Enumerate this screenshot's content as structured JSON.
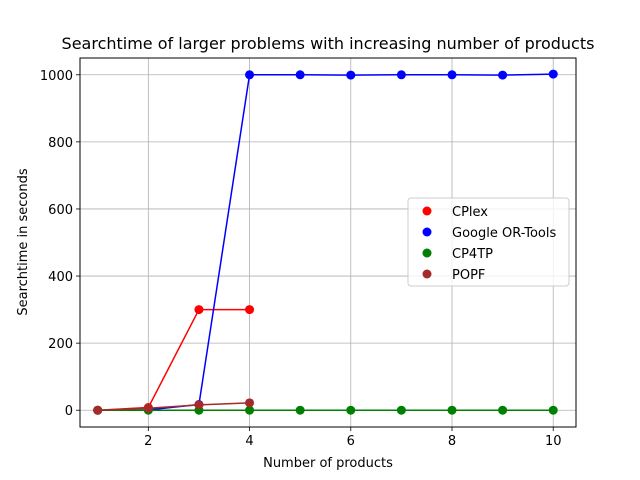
{
  "chart_data": {
    "type": "line",
    "title": "Searchtime of larger problems with increasing number of products",
    "xlabel": "Number of products",
    "ylabel": "Searchtime in seconds",
    "xlim": [
      0.65,
      10.45
    ],
    "ylim": [
      -50,
      1050
    ],
    "xticks": [
      2,
      4,
      6,
      8,
      10
    ],
    "yticks": [
      0,
      200,
      400,
      600,
      800,
      1000
    ],
    "grid": true,
    "legend_position": "center-right",
    "series": [
      {
        "name": "CPlex",
        "color": "#ff0000",
        "x": [
          1,
          2,
          3,
          4
        ],
        "y": [
          0,
          8,
          300,
          300
        ]
      },
      {
        "name": "Google OR-Tools",
        "color": "#0000ff",
        "x": [
          1,
          2,
          3,
          4,
          5,
          6,
          7,
          8,
          9,
          10
        ],
        "y": [
          0,
          1,
          17,
          1000,
          1000,
          999,
          1000,
          1000,
          999,
          1002
        ]
      },
      {
        "name": "CP4TP",
        "color": "#008000",
        "x": [
          1,
          2,
          3,
          4,
          5,
          6,
          7,
          8,
          9,
          10
        ],
        "y": [
          0,
          0,
          0,
          0,
          0,
          0,
          0,
          0,
          0,
          0
        ]
      },
      {
        "name": "POPF",
        "color": "#a52a2a",
        "x": [
          1,
          2,
          3,
          4
        ],
        "y": [
          0,
          6,
          16,
          22
        ]
      }
    ]
  }
}
